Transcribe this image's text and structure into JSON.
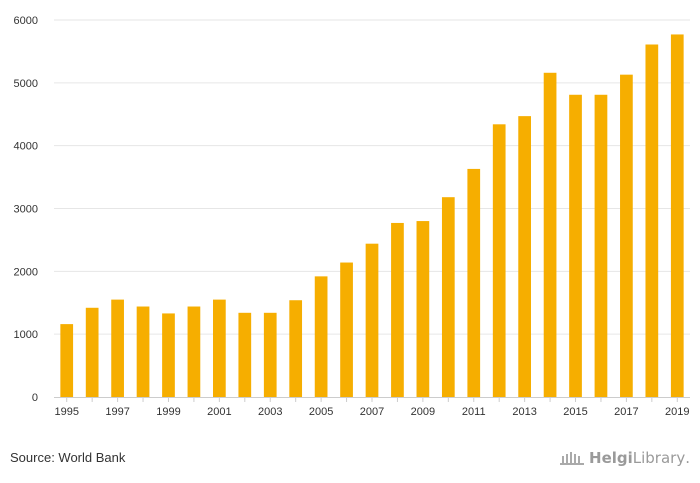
{
  "chart_data": {
    "type": "bar",
    "title": "",
    "xlabel": "",
    "ylabel": "",
    "ylim": [
      0,
      6000
    ],
    "yticks": [
      0,
      1000,
      2000,
      3000,
      4000,
      5000,
      6000
    ],
    "categories": [
      "1995",
      "1996",
      "1997",
      "1998",
      "1999",
      "2000",
      "2001",
      "2002",
      "2003",
      "2004",
      "2005",
      "2006",
      "2007",
      "2008",
      "2009",
      "2010",
      "2011",
      "2012",
      "2013",
      "2014",
      "2015",
      "2016",
      "2017",
      "2018",
      "2019"
    ],
    "xtick_labels": [
      "1995",
      "1997",
      "1999",
      "2001",
      "2003",
      "2005",
      "2007",
      "2009",
      "2011",
      "2013",
      "2015",
      "2017",
      "2019"
    ],
    "values": [
      1160,
      1420,
      1550,
      1440,
      1330,
      1440,
      1550,
      1340,
      1340,
      1540,
      1920,
      2140,
      2440,
      2770,
      2800,
      3180,
      3630,
      4340,
      4470,
      5160,
      4810,
      4810,
      5130,
      5610,
      5770
    ],
    "bar_color": "#f6ae00",
    "grid": true
  },
  "footer": {
    "source": "Source: World Bank",
    "logo_bold": "Helgi",
    "logo_light": "Library"
  }
}
